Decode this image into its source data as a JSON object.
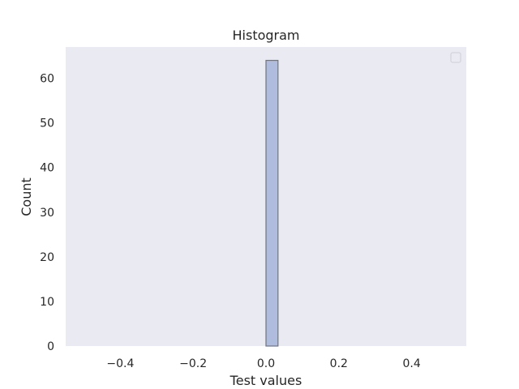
{
  "chart_data": {
    "type": "bar",
    "title": "Histogram",
    "xlabel": "Test values",
    "ylabel": "Count",
    "xlim": [
      -0.55,
      0.55
    ],
    "ylim": [
      0,
      67
    ],
    "xticks": [
      -0.4,
      -0.2,
      0.0,
      0.2,
      0.4
    ],
    "xtick_labels": [
      "−0.4",
      "−0.2",
      "0.0",
      "0.2",
      "0.4"
    ],
    "yticks": [
      0,
      10,
      20,
      30,
      40,
      50,
      60
    ],
    "ytick_labels": [
      "0",
      "10",
      "20",
      "30",
      "40",
      "50",
      "60"
    ],
    "bins": [
      {
        "x0": 0.0,
        "x1": 0.033,
        "count": 64
      }
    ],
    "grid": false,
    "legend": {
      "placement": "upper right",
      "entries": []
    },
    "colors": {
      "background": "#eaeaf2",
      "bar_fill": "#b0bcdd",
      "bar_edge": "#6f7480"
    }
  }
}
